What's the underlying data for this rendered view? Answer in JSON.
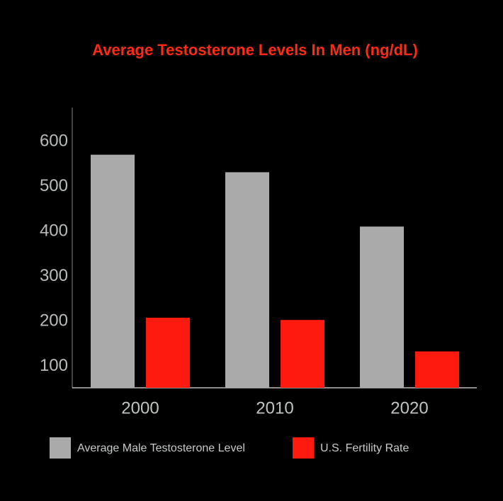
{
  "chart_data": {
    "type": "bar",
    "title": "Average Testosterone Levels In Men (ng/dL)",
    "categories": [
      "2000",
      "2010",
      "2020"
    ],
    "series": [
      {
        "name": "Average Male Testosterone Level",
        "color": "#a9aaa9",
        "values": [
          571,
          532,
          411
        ]
      },
      {
        "name": "U.S. Fertility Rate",
        "color": "#ff1a10",
        "values": [
          208,
          203,
          133
        ]
      }
    ],
    "ylim": [
      52,
      676
    ],
    "yticks": [
      100,
      200,
      300,
      400,
      500,
      600
    ],
    "grid": false
  }
}
